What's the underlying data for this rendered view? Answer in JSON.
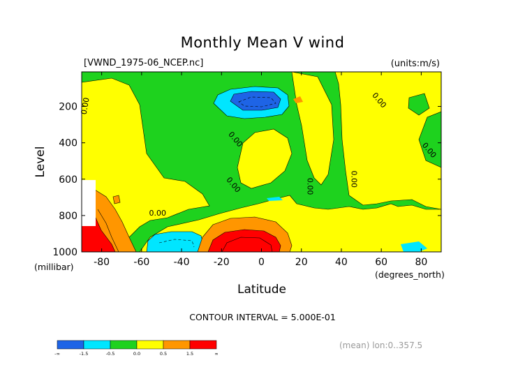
{
  "chart_data": {
    "type": "heatmap",
    "title": "Monthly Mean V wind",
    "subtitle_left": "[VWND_1975-06_NCEP.nc]",
    "subtitle_right": "(units:m/s)",
    "xlabel": "Latitude",
    "xunit": "(degrees_north)",
    "ylabel": "Level",
    "yunit": "(millibar)",
    "xlim": [
      -90,
      90
    ],
    "ylim": [
      1000,
      10
    ],
    "x_ticks": [
      -80,
      -60,
      -40,
      -20,
      0,
      20,
      40,
      60,
      80
    ],
    "x_tick_labels": [
      "-80",
      "-60",
      "-40",
      "-20",
      "0",
      "20",
      "40",
      "60",
      "80"
    ],
    "y_ticks": [
      200,
      400,
      600,
      800,
      1000
    ],
    "y_tick_labels": [
      "200",
      "400",
      "600",
      "800",
      "1000"
    ],
    "contour_interval_label": "CONTOUR INTERVAL = 5.000E-01",
    "contour_labels": [
      {
        "text": "0.00",
        "lat": -87,
        "lev": 200
      },
      {
        "text": "0.00",
        "lat": -14,
        "lev": 390
      },
      {
        "text": "0.00",
        "lat": -52,
        "lev": 800
      },
      {
        "text": "0.00",
        "lat": -15,
        "lev": 640
      },
      {
        "text": "0.00",
        "lat": 23,
        "lev": 640
      },
      {
        "text": "0.00",
        "lat": 45,
        "lev": 600
      },
      {
        "text": "0.00",
        "lat": 58,
        "lev": 175
      },
      {
        "text": "0.00",
        "lat": 83,
        "lev": 450
      }
    ],
    "colorbar": {
      "colors": [
        "#1e64e6",
        "#00e6ff",
        "#1ed21e",
        "#ffff00",
        "#ff9600",
        "#ff0000"
      ],
      "boundaries": [
        -1.5,
        -0.5,
        0.0,
        0.5,
        1.5
      ],
      "tick_labels": [
        "-∞",
        "-1.5",
        "-0.5",
        "0.0",
        "0.5",
        "1.5",
        "∞"
      ]
    },
    "regions": [
      {
        "label": "southern polar high V",
        "color": "#ff9600",
        "lat": [
          -90,
          -66
        ],
        "lev": [
          650,
          1000
        ]
      },
      {
        "label": "southern polar core",
        "color": "#ff0000",
        "lat": [
          -88,
          -76
        ],
        "lev": [
          860,
          1000
        ]
      },
      {
        "label": "southern mid-latitude low V",
        "color": "#00e6ff",
        "lat": [
          -58,
          -27
        ],
        "lev": [
          890,
          1000
        ]
      },
      {
        "label": "subtropical low-level maximum",
        "color": "#ff9600",
        "lat": [
          -27,
          12
        ],
        "lev": [
          780,
          1000
        ]
      },
      {
        "label": "subtropical low-level core",
        "color": "#ff0000",
        "lat": [
          -24,
          5
        ],
        "lev": [
          860,
          1000
        ]
      },
      {
        "label": "upper tropospheric minimum",
        "color": "#00e6ff",
        "lat": [
          -26,
          11
        ],
        "lev": [
          100,
          290
        ]
      },
      {
        "label": "upper tropospheric core",
        "color": "#1e64e6",
        "lat": [
          -21,
          6
        ],
        "lev": [
          120,
          230
        ]
      }
    ],
    "legend": "bottom-left",
    "grid": false
  },
  "footnote": "(mean) lon:0..357.5"
}
